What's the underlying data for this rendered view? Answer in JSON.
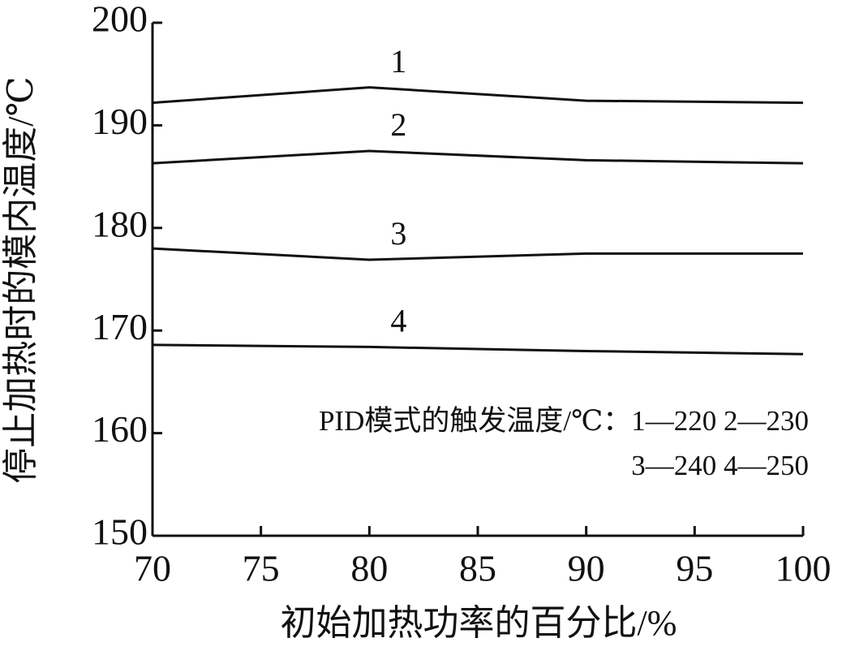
{
  "chart_data": {
    "type": "line",
    "xlabel": "初始加热功率的百分比/%",
    "ylabel": "停止加热时的模内温度/℃",
    "x": [
      70,
      80,
      90,
      100
    ],
    "series": [
      {
        "name": "1",
        "color": "#111111",
        "values": [
          192.2,
          193.7,
          192.4,
          192.2
        ]
      },
      {
        "name": "2",
        "color": "#111111",
        "values": [
          186.3,
          187.5,
          186.6,
          186.3
        ]
      },
      {
        "name": "3",
        "color": "#111111",
        "values": [
          178.0,
          176.9,
          177.5,
          177.5
        ]
      },
      {
        "name": "4",
        "color": "#111111",
        "values": [
          168.6,
          168.4,
          168.0,
          167.7
        ]
      }
    ],
    "annotations": [
      "PID模式的触发温度/℃：1—220  2—230",
      "3—240  4—250"
    ],
    "xlim": [
      70,
      100
    ],
    "xticks": [
      70,
      75,
      80,
      85,
      90,
      95,
      100
    ],
    "ylim": [
      150,
      200
    ],
    "yticks": [
      150,
      160,
      170,
      180,
      190,
      200
    ],
    "grid": false
  }
}
